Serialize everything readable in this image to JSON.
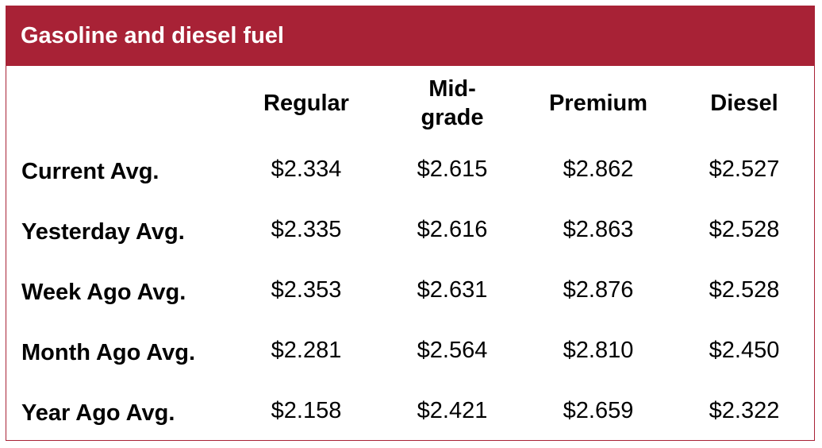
{
  "table": {
    "title": "Gasoline and diesel fuel",
    "columns": [
      "Regular",
      "Mid-\ngrade",
      "Premium",
      "Diesel"
    ],
    "rows": [
      {
        "label": "Current Avg.",
        "values": [
          "$2.334",
          "$2.615",
          "$2.862",
          "$2.527"
        ]
      },
      {
        "label": "Yesterday Avg.",
        "values": [
          "$2.335",
          "$2.616",
          "$2.863",
          "$2.528"
        ]
      },
      {
        "label": "Week Ago Avg.",
        "values": [
          "$2.353",
          "$2.631",
          "$2.876",
          "$2.528"
        ]
      },
      {
        "label": "Month Ago Avg.",
        "values": [
          "$2.281",
          "$2.564",
          "$2.810",
          "$2.450"
        ]
      },
      {
        "label": "Year Ago Avg.",
        "values": [
          "$2.158",
          "$2.421",
          "$2.659",
          "$2.322"
        ]
      }
    ],
    "header_color": "#a82236",
    "title_color": "#ffffff"
  }
}
